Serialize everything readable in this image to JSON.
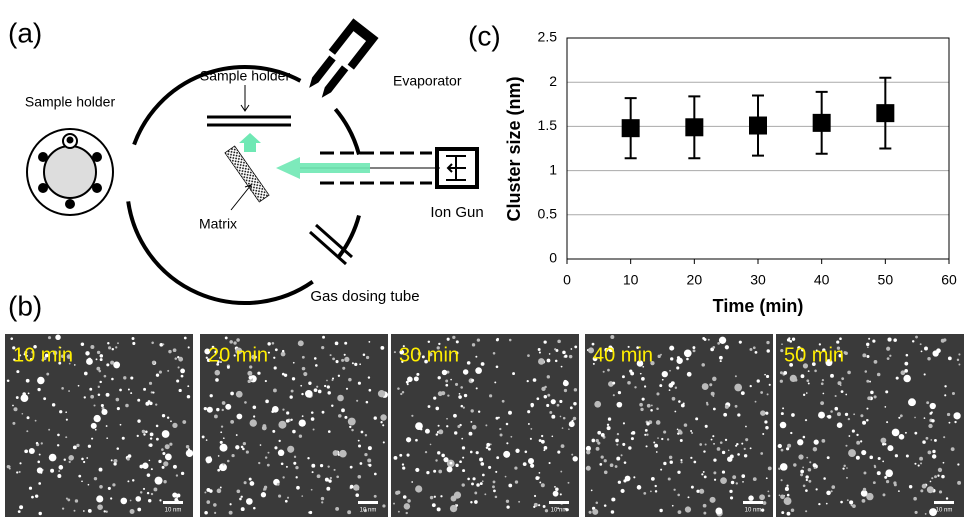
{
  "figure": {
    "panel_a": {
      "label": "(a)",
      "sample_holder_left": "Sample holder",
      "sample_holder": "Sample holder",
      "evaporator": "Evaporator",
      "ion_gun": "Ion Gun",
      "matrix": "Matrix",
      "gas_dosing_tube": "Gas dosing tube"
    },
    "panel_b": {
      "label": "(b)",
      "images": [
        {
          "time": "10 min",
          "scale": "10 nm"
        },
        {
          "time": "20 min",
          "scale": "10 nm"
        },
        {
          "time": "30 min",
          "scale": "10 nm"
        },
        {
          "time": "40 min",
          "scale": "10 nm"
        },
        {
          "time": "50 min",
          "scale": "10 nm"
        }
      ]
    },
    "panel_c": {
      "label": "(c)"
    }
  },
  "chart_data": {
    "type": "scatter",
    "x_label": "Time (min)",
    "y_label": "Cluster size (nm)",
    "x": [
      10,
      20,
      30,
      40,
      50
    ],
    "values": [
      1.48,
      1.49,
      1.51,
      1.54,
      1.65
    ],
    "errors": [
      0.34,
      0.35,
      0.34,
      0.35,
      0.4
    ],
    "color": "#000000",
    "xlim": [
      0,
      60
    ],
    "xticks": [
      0,
      10,
      20,
      30,
      40,
      50,
      60
    ],
    "ylim": [
      0,
      2.5
    ],
    "yticks": [
      0,
      0.5,
      1,
      1.5,
      2,
      2.5
    ],
    "grid": true
  }
}
